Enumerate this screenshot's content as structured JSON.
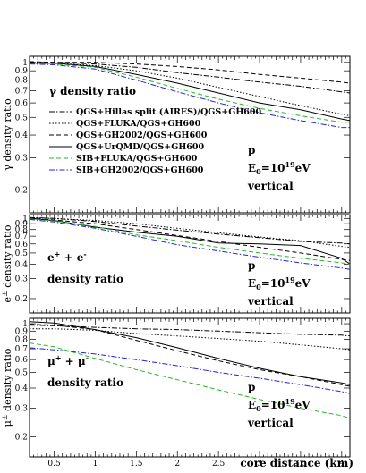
{
  "chart_data": {
    "type": "line",
    "x_axis": {
      "label": "core distance (km)",
      "min": 0.2,
      "max": 4.1,
      "ticks": [
        0.5,
        1,
        1.5,
        2,
        2.5,
        3,
        3.5,
        4
      ],
      "tick_labels": [
        "0.5",
        "1",
        "1.5",
        "2",
        "2.5",
        "3",
        "3.5",
        "4"
      ]
    },
    "y_axis": {
      "scale": "log",
      "min": 0.15,
      "max": 1.08,
      "ticks": [
        0.2,
        0.3,
        0.4,
        0.5,
        0.6,
        0.7,
        0.8,
        0.9,
        1
      ],
      "tick_labels": [
        "0.2",
        "0.3",
        "0.4",
        "0.5",
        "0.6",
        "0.7",
        "0.8",
        "0.9",
        "1"
      ]
    },
    "legend": [
      {
        "label": "QGS+Hillas split (AIRES)/QGS+GH600",
        "color": "#000000",
        "dash": "dashdot"
      },
      {
        "label": "QGS+FLUKA/QGS+GH600",
        "color": "#000000",
        "dash": "dotted"
      },
      {
        "label": "QGS+GH2002/QGS+GH600",
        "color": "#000000",
        "dash": "dashed"
      },
      {
        "label": "QGS+UrQMD/QGS+GH600",
        "color": "#000000",
        "dash": "solid"
      },
      {
        "label": "SIB+FLUKA/QGS+GH600",
        "color": "#22bb22",
        "dash": "dashed"
      },
      {
        "label": "SIB+GH2002/QGS+GH600",
        "color": "#2222dd",
        "dash": "dashdot"
      }
    ],
    "panels": [
      {
        "ylabel_main": "γ density ratio",
        "ylabel_super": "",
        "ylabel_tail": "",
        "inner_title": "γ density ratio",
        "particle_main": "",
        "particle_sup1": "",
        "particle_mid": "",
        "particle_sup2": "",
        "particle_line2": "",
        "annot": {
          "line1": "p",
          "e0_main": "E",
          "e0_sub": "0",
          "e0_eq": "=10",
          "e0_exp": "19",
          "e0_unit": "eV",
          "line3": "vertical"
        },
        "series": [
          {
            "name": "QGS+Hillas split (AIRES)/QGS+GH600",
            "x": [
              0.2,
              0.5,
              1,
              1.5,
              2,
              2.5,
              3,
              3.5,
              4,
              4.1
            ],
            "y": [
              1.0,
              1.0,
              0.98,
              0.94,
              0.88,
              0.83,
              0.78,
              0.74,
              0.69,
              0.68
            ]
          },
          {
            "name": "QGS+FLUKA/QGS+GH600",
            "x": [
              0.2,
              0.5,
              1,
              1.5,
              2,
              2.5,
              3,
              3.5,
              4,
              4.1
            ],
            "y": [
              0.99,
              0.99,
              0.96,
              0.9,
              0.82,
              0.73,
              0.65,
              0.58,
              0.52,
              0.51
            ]
          },
          {
            "name": "QGS+GH2002/QGS+GH600",
            "x": [
              0.2,
              0.5,
              1,
              1.5,
              2,
              2.5,
              3,
              3.5,
              4,
              4.1
            ],
            "y": [
              1.01,
              1.0,
              1.0,
              0.98,
              0.95,
              0.91,
              0.86,
              0.82,
              0.78,
              0.77
            ]
          },
          {
            "name": "QGS+UrQMD/QGS+GH600",
            "x": [
              0.2,
              0.5,
              1,
              1.5,
              2,
              2.5,
              3,
              3.5,
              4,
              4.1
            ],
            "y": [
              0.99,
              0.99,
              0.95,
              0.86,
              0.77,
              0.68,
              0.6,
              0.55,
              0.49,
              0.48
            ]
          },
          {
            "name": "SIB+FLUKA/QGS+GH600",
            "x": [
              0.2,
              0.5,
              1,
              1.5,
              2,
              2.5,
              3,
              3.5,
              4,
              4.1
            ],
            "y": [
              0.99,
              0.98,
              0.94,
              0.83,
              0.72,
              0.63,
              0.56,
              0.51,
              0.47,
              0.47
            ]
          },
          {
            "name": "SIB+GH2002/QGS+GH600",
            "x": [
              0.2,
              0.5,
              1,
              1.5,
              2,
              2.5,
              3,
              3.5,
              4,
              4.1
            ],
            "y": [
              0.98,
              0.97,
              0.92,
              0.8,
              0.69,
              0.6,
              0.53,
              0.48,
              0.44,
              0.44
            ]
          }
        ]
      },
      {
        "ylabel_main": "e",
        "ylabel_super": "±",
        "ylabel_tail": " density ratio",
        "inner_title": "",
        "particle_main": "e",
        "particle_sup1": "+",
        "particle_mid": " + e",
        "particle_sup2": "-",
        "particle_line2": "density ratio",
        "annot": {
          "line1": "p",
          "e0_main": "E",
          "e0_sub": "0",
          "e0_eq": "=10",
          "e0_exp": "19",
          "e0_unit": "eV",
          "line3": "vertical"
        },
        "series": [
          {
            "name": "QGS+Hillas split (AIRES)/QGS+GH600",
            "x": [
              0.2,
              0.5,
              1,
              1.5,
              2,
              2.5,
              3,
              3.5,
              4,
              4.1
            ],
            "y": [
              1.02,
              1.0,
              0.94,
              0.86,
              0.79,
              0.73,
              0.68,
              0.63,
              0.61,
              0.6
            ]
          },
          {
            "name": "QGS+FLUKA/QGS+GH600",
            "x": [
              0.2,
              0.5,
              1,
              1.5,
              2,
              2.5,
              3,
              3.5,
              4,
              4.1
            ],
            "y": [
              1.01,
              1.0,
              0.96,
              0.9,
              0.82,
              0.75,
              0.69,
              0.64,
              0.57,
              0.56
            ]
          },
          {
            "name": "QGS+GH2002/QGS+GH600",
            "x": [
              0.2,
              0.5,
              1,
              1.5,
              2,
              2.5,
              3,
              3.5,
              4,
              4.1
            ],
            "y": [
              1.0,
              0.97,
              0.9,
              0.8,
              0.71,
              0.63,
              0.56,
              0.5,
              0.44,
              0.43
            ]
          },
          {
            "name": "QGS+UrQMD/QGS+GH600",
            "x": [
              0.2,
              0.5,
              1,
              1.5,
              2,
              2.5,
              3,
              3.5,
              4,
              4.1
            ],
            "y": [
              1.0,
              0.96,
              0.84,
              0.76,
              0.7,
              0.61,
              0.6,
              0.58,
              0.45,
              0.4
            ]
          },
          {
            "name": "SIB+FLUKA/QGS+GH600",
            "x": [
              0.2,
              0.5,
              1,
              1.5,
              2,
              2.5,
              3,
              3.5,
              4,
              4.1
            ],
            "y": [
              0.99,
              0.95,
              0.85,
              0.72,
              0.64,
              0.56,
              0.5,
              0.45,
              0.41,
              0.4
            ]
          },
          {
            "name": "SIB+GH2002/QGS+GH600",
            "x": [
              0.2,
              0.5,
              1,
              1.5,
              2,
              2.5,
              3,
              3.5,
              4,
              4.1
            ],
            "y": [
              0.98,
              0.93,
              0.82,
              0.7,
              0.59,
              0.52,
              0.46,
              0.41,
              0.37,
              0.36
            ]
          }
        ]
      },
      {
        "ylabel_main": "μ",
        "ylabel_super": "±",
        "ylabel_tail": " density ratio",
        "inner_title": "",
        "particle_main": "μ",
        "particle_sup1": "+",
        "particle_mid": " + μ",
        "particle_sup2": "-",
        "particle_line2": "density ratio",
        "annot": {
          "line1": "p",
          "e0_main": "E",
          "e0_sub": "0",
          "e0_eq": "=10",
          "e0_exp": "19",
          "e0_unit": "eV",
          "line3": "vertical"
        },
        "series": [
          {
            "name": "QGS+Hillas split (AIRES)/QGS+GH600",
            "x": [
              0.2,
              0.5,
              1,
              1.5,
              2,
              2.5,
              3,
              3.5,
              4,
              4.1
            ],
            "y": [
              0.98,
              0.97,
              0.95,
              0.93,
              0.92,
              0.9,
              0.88,
              0.86,
              0.85,
              0.84
            ]
          },
          {
            "name": "QGS+FLUKA/QGS+GH600",
            "x": [
              0.2,
              0.5,
              1,
              1.5,
              2,
              2.5,
              3,
              3.5,
              4,
              4.1
            ],
            "y": [
              0.93,
              0.93,
              0.91,
              0.87,
              0.84,
              0.81,
              0.78,
              0.74,
              0.7,
              0.69
            ]
          },
          {
            "name": "QGS+GH2002/QGS+GH600",
            "x": [
              0.2,
              0.5,
              1,
              1.5,
              2,
              2.5,
              3,
              3.5,
              4,
              4.1
            ],
            "y": [
              0.99,
              0.98,
              0.92,
              0.79,
              0.68,
              0.59,
              0.52,
              0.47,
              0.42,
              0.41
            ]
          },
          {
            "name": "QGS+UrQMD/QGS+GH600",
            "x": [
              0.2,
              0.5,
              1,
              1.5,
              2,
              2.5,
              3,
              3.5,
              4,
              4.1
            ],
            "y": [
              1.03,
              1.01,
              0.92,
              0.82,
              0.71,
              0.61,
              0.53,
              0.47,
              0.43,
              0.42
            ]
          },
          {
            "name": "SIB+FLUKA/QGS+GH600",
            "x": [
              0.2,
              0.5,
              1,
              1.5,
              2,
              2.5,
              3,
              3.5,
              4,
              4.1
            ],
            "y": [
              0.76,
              0.72,
              0.61,
              0.52,
              0.45,
              0.39,
              0.34,
              0.3,
              0.27,
              0.26
            ]
          },
          {
            "name": "SIB+GH2002/QGS+GH600",
            "x": [
              0.2,
              0.5,
              1,
              1.5,
              2,
              2.5,
              3,
              3.5,
              4,
              4.1
            ],
            "y": [
              0.71,
              0.69,
              0.65,
              0.6,
              0.55,
              0.5,
              0.46,
              0.42,
              0.38,
              0.37
            ]
          }
        ]
      }
    ]
  }
}
